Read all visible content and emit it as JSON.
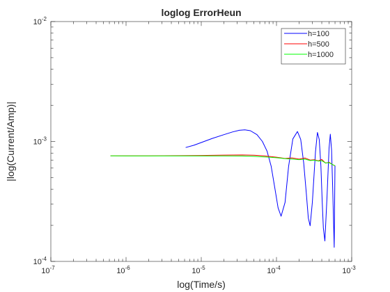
{
  "chart_data": {
    "type": "line",
    "title": "loglog ErrorHeun",
    "xlabel": "log(Time/s)",
    "ylabel": "|log(Current/Amp)|",
    "xscale": "log",
    "yscale": "log",
    "xlim": [
      1e-07,
      0.001
    ],
    "ylim": [
      0.0001,
      0.01
    ],
    "x_ticks": [
      {
        "base": "10",
        "exp": "-7",
        "value": 1e-07
      },
      {
        "base": "10",
        "exp": "-6",
        "value": 1e-06
      },
      {
        "base": "10",
        "exp": "-5",
        "value": 1e-05
      },
      {
        "base": "10",
        "exp": "-4",
        "value": 0.0001
      },
      {
        "base": "10",
        "exp": "-3",
        "value": 0.001
      }
    ],
    "y_ticks": [
      {
        "base": "10",
        "exp": "-4",
        "value": 0.0001
      },
      {
        "base": "10",
        "exp": "-3",
        "value": 0.001
      },
      {
        "base": "10",
        "exp": "-2",
        "value": 0.01
      }
    ],
    "grid": false,
    "box": true,
    "legend_position": "top-right",
    "series": [
      {
        "name": "h=100",
        "color": "#0000ff",
        "x": [
          6.2e-06,
          8e-06,
          1e-05,
          1.4e-05,
          2e-05,
          2.6e-05,
          3.2e-05,
          3.8e-05,
          4.5e-05,
          5.5e-05,
          6.5e-05,
          7.5e-05,
          8.5e-05,
          9.5e-05,
          0.000105,
          0.000115,
          0.00013,
          0.000145,
          0.000165,
          0.00019,
          0.00021,
          0.00023,
          0.00025,
          0.000265,
          0.00028,
          0.0003,
          0.00033,
          0.00035,
          0.00037,
          0.00039,
          0.000405,
          0.00042,
          0.00044,
          0.00047,
          0.0005,
          0.00052,
          0.00054,
          0.00056,
          0.000585,
          0.0006
        ],
        "y": [
          0.00089,
          0.00093,
          0.00098,
          0.00106,
          0.00114,
          0.0012,
          0.00124,
          0.00125,
          0.00123,
          0.00114,
          0.001,
          0.00083,
          0.00062,
          0.00041,
          0.00028,
          0.000238,
          0.00031,
          0.00062,
          0.00105,
          0.00121,
          0.00104,
          0.00066,
          0.00036,
          0.00023,
          0.000198,
          0.00031,
          0.00082,
          0.00119,
          0.00104,
          0.00062,
          0.00032,
          0.00019,
          0.000148,
          0.00035,
          0.00088,
          0.00115,
          0.00085,
          0.00039,
          0.000131,
          0.00063
        ]
      },
      {
        "name": "h=500",
        "color": "#ff0000",
        "x": [
          6.2e-07,
          1e-06,
          2e-06,
          5e-06,
          1e-05,
          2e-05,
          3.5e-05,
          5e-05,
          7e-05,
          0.0001,
          0.00013,
          0.00016,
          0.0002,
          0.00024,
          0.00028,
          0.00032,
          0.00036,
          0.0004,
          0.00045,
          0.0005,
          0.00055,
          0.0006
        ],
        "y": [
          0.00076,
          0.00076,
          0.00076,
          0.000762,
          0.000765,
          0.00077,
          0.000772,
          0.000768,
          0.000758,
          0.00074,
          0.000722,
          0.00073,
          0.000712,
          0.000728,
          0.0007,
          0.000705,
          0.00069,
          0.000708,
          0.00066,
          0.000672,
          0.000645,
          0.000625
        ]
      },
      {
        "name": "h=1000",
        "color": "#00ff00",
        "x": [
          6.2e-07,
          1e-06,
          2e-06,
          5e-06,
          1e-05,
          2e-05,
          3.5e-05,
          5e-05,
          7e-05,
          0.0001,
          0.00013,
          0.00016,
          0.0002,
          0.00024,
          0.00028,
          0.00032,
          0.00036,
          0.0004,
          0.00045,
          0.0005,
          0.00055,
          0.0006
        ],
        "y": [
          0.00076,
          0.000759,
          0.000758,
          0.000758,
          0.000758,
          0.000758,
          0.000757,
          0.000752,
          0.000744,
          0.000732,
          0.00072,
          0.000714,
          0.000706,
          0.000712,
          0.000694,
          0.000698,
          0.000686,
          0.000692,
          0.000662,
          0.000666,
          0.000645,
          0.000628
        ]
      }
    ]
  }
}
